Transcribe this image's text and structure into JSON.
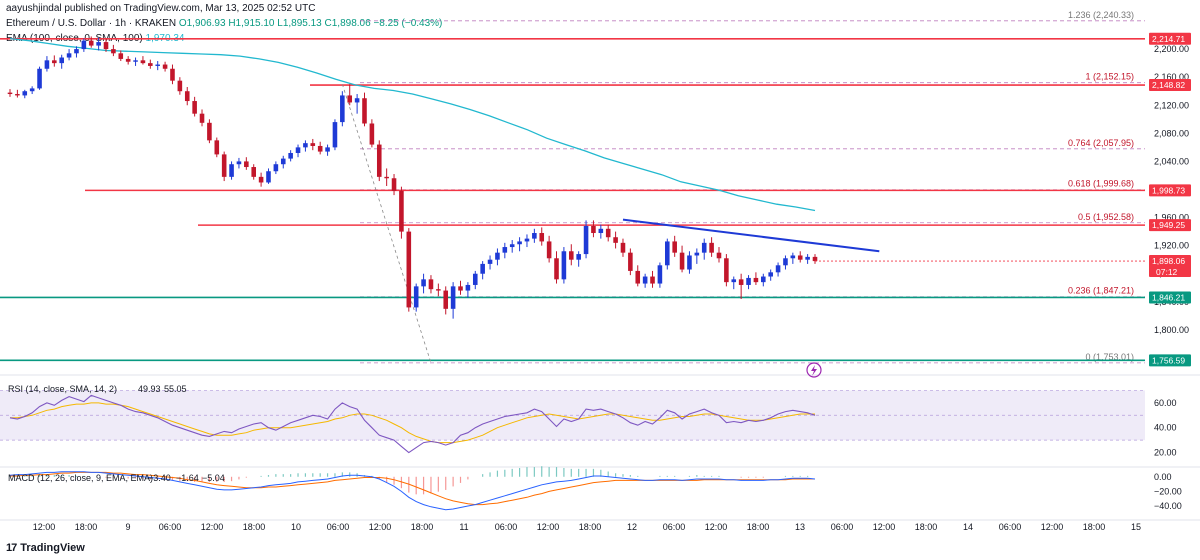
{
  "header": {
    "published": "aayushjindal published on TradingView.com, Mar 13, 2025 02:52 UTC",
    "symbol_line": "Ethereum / U.S. Dollar · 1h · KRAKEN",
    "ohlc": "O1,906.93 H1,915.10 L1,895.13 C1,898.06 −8.25 (−0.43%)",
    "ema_label": "EMA (100, close, 0, SMA, 100)",
    "ema_value": "1,970.34"
  },
  "brand": {
    "logo": "17",
    "name": "TradingView"
  },
  "chart_data": {
    "type": "candlestick",
    "yaxis_ticks": [
      "2,200.00",
      "2,160.00",
      "2,120.00",
      "2,080.00",
      "2,040.00",
      "2,000.00",
      "1,960.00",
      "1,920.00",
      "1,880.00",
      "1,840.00",
      "1,800.00"
    ],
    "ylim": [
      1740,
      2250
    ],
    "xaxis_ticks": [
      "12:00",
      "18:00",
      "9",
      "06:00",
      "12:00",
      "18:00",
      "10",
      "06:00",
      "12:00",
      "18:00",
      "11",
      "06:00",
      "12:00",
      "18:00",
      "12",
      "06:00",
      "12:00",
      "18:00",
      "13",
      "06:00",
      "12:00",
      "18:00",
      "14",
      "06:00",
      "12:00",
      "18:00",
      "15"
    ],
    "candles": [
      [
        2138,
        2143,
        2132,
        2136
      ],
      [
        2136,
        2142,
        2131,
        2134
      ],
      [
        2134,
        2142,
        2130,
        2140
      ],
      [
        2140,
        2147,
        2136,
        2144
      ],
      [
        2144,
        2175,
        2142,
        2172
      ],
      [
        2172,
        2190,
        2168,
        2184
      ],
      [
        2184,
        2191,
        2175,
        2180
      ],
      [
        2180,
        2192,
        2172,
        2188
      ],
      [
        2188,
        2200,
        2184,
        2194
      ],
      [
        2194,
        2204,
        2188,
        2200
      ],
      [
        2200,
        2215,
        2196,
        2212
      ],
      [
        2212,
        2218,
        2202,
        2205
      ],
      [
        2205,
        2216,
        2198,
        2210
      ],
      [
        2210,
        2214,
        2196,
        2200
      ],
      [
        2200,
        2206,
        2190,
        2194
      ],
      [
        2194,
        2198,
        2183,
        2186
      ],
      [
        2186,
        2190,
        2178,
        2182
      ],
      [
        2182,
        2188,
        2176,
        2184
      ],
      [
        2184,
        2190,
        2178,
        2180
      ],
      [
        2180,
        2185,
        2172,
        2176
      ],
      [
        2176,
        2183,
        2170,
        2178
      ],
      [
        2178,
        2182,
        2168,
        2172
      ],
      [
        2172,
        2178,
        2150,
        2155
      ],
      [
        2155,
        2160,
        2135,
        2140
      ],
      [
        2140,
        2146,
        2120,
        2126
      ],
      [
        2126,
        2132,
        2104,
        2108
      ],
      [
        2108,
        2114,
        2090,
        2095
      ],
      [
        2095,
        2100,
        2066,
        2070
      ],
      [
        2070,
        2074,
        2046,
        2050
      ],
      [
        2050,
        2054,
        2012,
        2018
      ],
      [
        2018,
        2040,
        2014,
        2036
      ],
      [
        2036,
        2045,
        2030,
        2040
      ],
      [
        2040,
        2046,
        2028,
        2032
      ],
      [
        2032,
        2036,
        2014,
        2018
      ],
      [
        2018,
        2024,
        2004,
        2010
      ],
      [
        2010,
        2030,
        2008,
        2026
      ],
      [
        2026,
        2040,
        2022,
        2036
      ],
      [
        2036,
        2048,
        2030,
        2044
      ],
      [
        2044,
        2056,
        2040,
        2052
      ],
      [
        2052,
        2064,
        2046,
        2060
      ],
      [
        2060,
        2070,
        2054,
        2066
      ],
      [
        2066,
        2072,
        2056,
        2062
      ],
      [
        2062,
        2068,
        2050,
        2054
      ],
      [
        2054,
        2064,
        2048,
        2060
      ],
      [
        2060,
        2100,
        2056,
        2096
      ],
      [
        2096,
        2140,
        2090,
        2134
      ],
      [
        2134,
        2150,
        2120,
        2124
      ],
      [
        2124,
        2136,
        2108,
        2130
      ],
      [
        2130,
        2138,
        2090,
        2094
      ],
      [
        2094,
        2100,
        2060,
        2064
      ],
      [
        2064,
        2070,
        2012,
        2018
      ],
      [
        2018,
        2030,
        2005,
        2016
      ],
      [
        2016,
        2022,
        1992,
        1998
      ],
      [
        1998,
        2004,
        1930,
        1940
      ],
      [
        1940,
        1945,
        1826,
        1832
      ],
      [
        1832,
        1866,
        1826,
        1862
      ],
      [
        1862,
        1880,
        1852,
        1872
      ],
      [
        1872,
        1878,
        1852,
        1858
      ],
      [
        1858,
        1866,
        1848,
        1856
      ],
      [
        1856,
        1862,
        1822,
        1830
      ],
      [
        1830,
        1868,
        1816,
        1862
      ],
      [
        1862,
        1870,
        1850,
        1856
      ],
      [
        1856,
        1868,
        1846,
        1864
      ],
      [
        1864,
        1884,
        1858,
        1880
      ],
      [
        1880,
        1898,
        1872,
        1894
      ],
      [
        1894,
        1906,
        1886,
        1900
      ],
      [
        1900,
        1916,
        1892,
        1910
      ],
      [
        1910,
        1924,
        1902,
        1918
      ],
      [
        1918,
        1928,
        1910,
        1922
      ],
      [
        1922,
        1932,
        1912,
        1926
      ],
      [
        1926,
        1936,
        1918,
        1930
      ],
      [
        1930,
        1944,
        1924,
        1938
      ],
      [
        1938,
        1946,
        1920,
        1926
      ],
      [
        1926,
        1934,
        1896,
        1902
      ],
      [
        1902,
        1912,
        1866,
        1872
      ],
      [
        1872,
        1918,
        1866,
        1912
      ],
      [
        1912,
        1922,
        1892,
        1900
      ],
      [
        1900,
        1912,
        1890,
        1908
      ],
      [
        1908,
        1956,
        1902,
        1948
      ],
      [
        1948,
        1956,
        1932,
        1938
      ],
      [
        1938,
        1950,
        1930,
        1944
      ],
      [
        1944,
        1950,
        1926,
        1932
      ],
      [
        1932,
        1940,
        1916,
        1924
      ],
      [
        1924,
        1930,
        1904,
        1910
      ],
      [
        1910,
        1916,
        1878,
        1884
      ],
      [
        1884,
        1892,
        1862,
        1866
      ],
      [
        1866,
        1880,
        1860,
        1876
      ],
      [
        1876,
        1884,
        1860,
        1866
      ],
      [
        1866,
        1896,
        1860,
        1892
      ],
      [
        1892,
        1930,
        1886,
        1926
      ],
      [
        1926,
        1934,
        1904,
        1910
      ],
      [
        1910,
        1920,
        1882,
        1886
      ],
      [
        1886,
        1912,
        1880,
        1906
      ],
      [
        1906,
        1916,
        1894,
        1910
      ],
      [
        1910,
        1930,
        1900,
        1924
      ],
      [
        1924,
        1932,
        1904,
        1910
      ],
      [
        1910,
        1918,
        1896,
        1902
      ],
      [
        1902,
        1908,
        1862,
        1868
      ],
      [
        1868,
        1876,
        1858,
        1872
      ],
      [
        1872,
        1880,
        1844,
        1864
      ],
      [
        1864,
        1878,
        1858,
        1874
      ],
      [
        1874,
        1882,
        1864,
        1868
      ],
      [
        1868,
        1880,
        1862,
        1876
      ],
      [
        1876,
        1886,
        1870,
        1882
      ],
      [
        1882,
        1896,
        1876,
        1892
      ],
      [
        1892,
        1906,
        1886,
        1902
      ],
      [
        1902,
        1910,
        1894,
        1906
      ],
      [
        1906,
        1912,
        1896,
        1900
      ],
      [
        1900,
        1908,
        1894,
        1904
      ],
      [
        1904,
        1908,
        1894,
        1898
      ]
    ],
    "ema": [
      2215,
      2212,
      2208,
      2204,
      2201,
      2198,
      2197,
      2196,
      2195,
      2194,
      2193,
      2192,
      2190,
      2186,
      2181,
      2174,
      2166,
      2157,
      2149,
      2144,
      2141,
      2136,
      2129,
      2122,
      2114,
      2105,
      2095,
      2085,
      2073,
      2064,
      2055,
      2045,
      2037,
      2029,
      2021,
      2011,
      2005,
      1999,
      1991,
      1985,
      1979,
      1975,
      1970
    ],
    "ema_x_range": [
      0,
      1.0
    ],
    "fib_levels": [
      {
        "label": "1.236 (2,240.33)",
        "value": 2240.33
      },
      {
        "label": "1 (2,152.15)",
        "value": 2152.15
      },
      {
        "label": "0.764 (2,057.95)",
        "value": 2057.95
      },
      {
        "label": "0.618 (1,999.68)",
        "value": 1999.68
      },
      {
        "label": "0.5 (1,952.58)",
        "value": 1952.58
      },
      {
        "label": "0.236 (1,847.21)",
        "value": 1847.21
      },
      {
        "label": "0 (1,753.01)",
        "value": 1753.01
      }
    ],
    "price_tags": [
      {
        "label": "2,214.71",
        "value": 2214.71,
        "color": "#f23645"
      },
      {
        "label": "2,148.82",
        "value": 2148.82,
        "color": "#f23645"
      },
      {
        "label": "1,998.73",
        "value": 1998.73,
        "color": "#f23645"
      },
      {
        "label": "1,949.25",
        "value": 1949.25,
        "color": "#f23645"
      },
      {
        "label": "1,898.06",
        "value": 1898.06,
        "color": "#f23645",
        "sub": "07:12"
      },
      {
        "label": "1,846.21",
        "value": 1846.21,
        "color": "#089981"
      },
      {
        "label": "1,756.59",
        "value": 1756.59,
        "color": "#089981"
      }
    ],
    "horizontal_lines": [
      {
        "value": 2214.71,
        "color": "#f23645"
      },
      {
        "value": 2148.82,
        "color": "#f23645"
      },
      {
        "value": 1998.73,
        "color": "#f23645"
      },
      {
        "value": 1949.25,
        "color": "#f23645"
      },
      {
        "value": 1846.21,
        "color": "#089981"
      },
      {
        "value": 1756.59,
        "color": "#089981"
      }
    ],
    "trendline": {
      "from": {
        "candle": 83,
        "value": 1957
      },
      "to": {
        "candle": 115,
        "value": 1912
      },
      "color": "#1e3ad6"
    },
    "rsi": {
      "label": "RSI (14, close, SMA, 14, 2)",
      "value": "49.93",
      "value2": "55.05",
      "ticks": [
        "60.00",
        "40.00",
        "20.00"
      ],
      "values": [
        48,
        47,
        49,
        52,
        57,
        60,
        58,
        62,
        65,
        63,
        61,
        66,
        64,
        62,
        60,
        58,
        55,
        53,
        52,
        50,
        48,
        45,
        42,
        40,
        38,
        36,
        34,
        33,
        35,
        37,
        36,
        39,
        41,
        43,
        44,
        40,
        38,
        41,
        44,
        46,
        48,
        50,
        49,
        47,
        55,
        60,
        57,
        55,
        46,
        40,
        34,
        32,
        30,
        25,
        20,
        24,
        28,
        29,
        28,
        26,
        28,
        34,
        36,
        40,
        43,
        45,
        47,
        49,
        50,
        51,
        52,
        55,
        53,
        47,
        41,
        47,
        45,
        47,
        55,
        54,
        55,
        53,
        51,
        48,
        44,
        42,
        45,
        43,
        48,
        54,
        52,
        47,
        51,
        53,
        55,
        52,
        50,
        44,
        45,
        44,
        46,
        45,
        46,
        48,
        51,
        53,
        54,
        53,
        52,
        50
      ],
      "ma_values": [
        48,
        48,
        49,
        50,
        52,
        54,
        55,
        57,
        58,
        59,
        59,
        60,
        60,
        59,
        59,
        58,
        57,
        55,
        53,
        51,
        49,
        47,
        45,
        43,
        41,
        39,
        37,
        35,
        34,
        34,
        34,
        35,
        36,
        38,
        39,
        40,
        40,
        40,
        40,
        41,
        42,
        43,
        44,
        45,
        47,
        48,
        50,
        51,
        51,
        50,
        48,
        46,
        43,
        40,
        36,
        33,
        31,
        29,
        28,
        28,
        28,
        29,
        30,
        32,
        34,
        37,
        40,
        42,
        44,
        46,
        48,
        49,
        50,
        51,
        50,
        49,
        48,
        47,
        48,
        49,
        50,
        51,
        51,
        50,
        49,
        48,
        47,
        46,
        46,
        47,
        48,
        49,
        49,
        50,
        51,
        51,
        50,
        49,
        48,
        47,
        46,
        46,
        46,
        47,
        48,
        49,
        50,
        51,
        51,
        51
      ],
      "band": [
        30,
        70
      ]
    },
    "macd": {
      "label": "MACD (12, 26, close, 9, EMA, EMA)",
      "v1": "−3.40",
      "v2": "−1.64",
      "v3": "−5.04",
      "ticks": [
        "0.00",
        "−20.00",
        "−40.00"
      ],
      "ylim": [
        -55,
        12
      ],
      "macd_line": [
        2,
        3,
        3,
        4,
        5,
        6,
        6,
        7,
        7,
        7,
        7,
        6,
        6,
        5,
        4,
        3,
        2,
        1,
        0,
        -1,
        -2,
        -3,
        -5,
        -7,
        -9,
        -11,
        -13,
        -15,
        -17,
        -18,
        -18,
        -17,
        -16,
        -15,
        -14,
        -12,
        -11,
        -10,
        -9,
        -7,
        -6,
        -5,
        -4,
        -3,
        -1,
        1,
        2,
        2,
        1,
        0,
        -3,
        -8,
        -13,
        -20,
        -28,
        -34,
        -38,
        -41,
        -43,
        -45,
        -44,
        -42,
        -40,
        -38,
        -35,
        -32,
        -29,
        -26,
        -23,
        -20,
        -17,
        -14,
        -11,
        -9,
        -7,
        -6,
        -5,
        -3,
        -1,
        1,
        1,
        0,
        -1,
        -2,
        -3,
        -4,
        -5,
        -5,
        -4,
        -4,
        -4,
        -5,
        -4,
        -3,
        -3,
        -3,
        -3,
        -4,
        -4,
        -5,
        -5,
        -5,
        -5,
        -4,
        -4,
        -3,
        -2,
        -2,
        -2,
        -3
      ],
      "signal_line": [
        1,
        1,
        2,
        2,
        3,
        3,
        4,
        5,
        5,
        6,
        6,
        6,
        6,
        6,
        5,
        5,
        4,
        3,
        3,
        2,
        1,
        0,
        -1,
        -2,
        -4,
        -5,
        -7,
        -9,
        -11,
        -12,
        -13,
        -14,
        -15,
        -15,
        -15,
        -14,
        -14,
        -13,
        -12,
        -11,
        -10,
        -9,
        -8,
        -7,
        -5,
        -4,
        -3,
        -2,
        -1,
        -1,
        -1,
        -2,
        -4,
        -7,
        -10,
        -14,
        -18,
        -22,
        -26,
        -30,
        -33,
        -35,
        -37,
        -38,
        -38,
        -37,
        -36,
        -34,
        -32,
        -30,
        -28,
        -25,
        -23,
        -20,
        -18,
        -16,
        -14,
        -12,
        -10,
        -8,
        -7,
        -6,
        -5,
        -5,
        -5,
        -5,
        -5,
        -5,
        -5,
        -5,
        -5,
        -5,
        -5,
        -5,
        -4,
        -4,
        -4,
        -4,
        -4,
        -4,
        -4,
        -4,
        -4,
        -4,
        -4,
        -4,
        -3,
        -3,
        -3,
        -3
      ]
    },
    "colors": {
      "up": "#1e3ad6",
      "down": "#c2162b",
      "ema": "#22b8cf",
      "rsi": "#7e57c2",
      "rsi_ma": "#f5b800",
      "macd": "#2962ff",
      "signal": "#ff6d00",
      "hist_pos": "#26a69a",
      "hist_neg": "#ef5350",
      "fib": "#b060b0"
    }
  }
}
